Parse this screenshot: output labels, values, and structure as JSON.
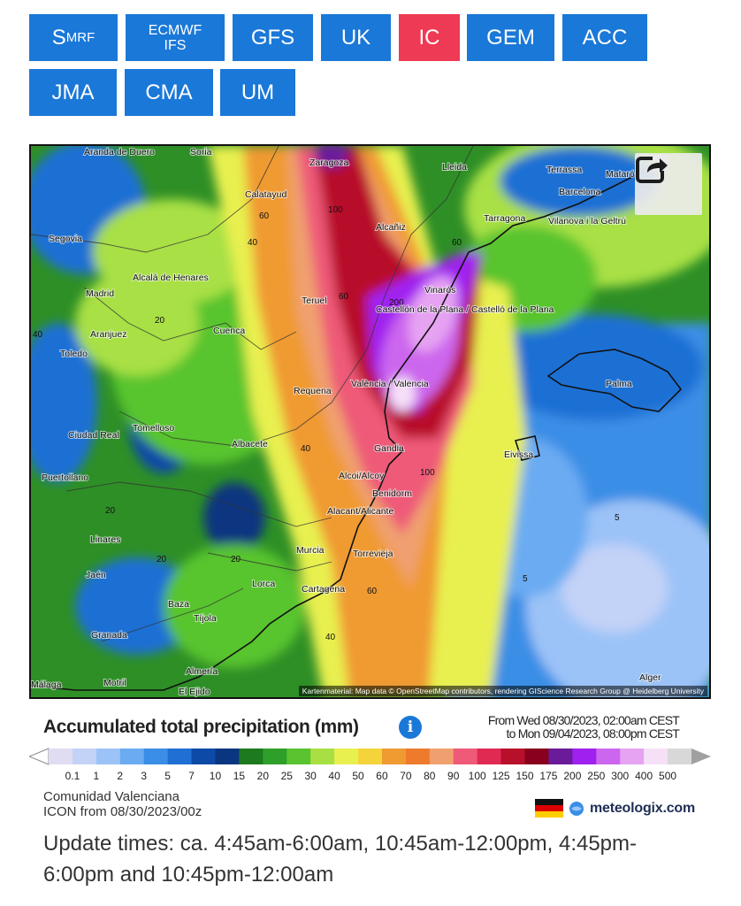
{
  "models": [
    {
      "label": "S",
      "sub": "MRF"
    },
    {
      "label": "ECMWF",
      "line2": "IFS"
    },
    {
      "label": "GFS"
    },
    {
      "label": "UK"
    },
    {
      "label": "IC",
      "active": true
    },
    {
      "label": "GEM"
    },
    {
      "label": "ACC"
    },
    {
      "label": "JMA"
    },
    {
      "label": "CMA"
    },
    {
      "label": "UM"
    }
  ],
  "map": {
    "cities": [
      "Aranda de Duero",
      "Soria",
      "Zaragoza",
      "Lleida",
      "Terrassa",
      "Mataró",
      "Barcelona",
      "Calatayud",
      "Tarragona",
      "Vilanova i la Geltrú",
      "Segovia",
      "Alcañiz",
      "Madrid",
      "Alcalá de Henares",
      "Vinaròs",
      "Teruel",
      "Castellón de la Plana / Castelló de la Plana",
      "Aranjuez",
      "Cuenca",
      "Toledo",
      "Palma",
      "Requena",
      "València / Valencia",
      "Ciudad Real",
      "Tomelloso",
      "Albacete",
      "Gandia",
      "Eivissa",
      "Puertollano",
      "Alcoi/Alcoy",
      "Benidorm",
      "Alacant/Alicante",
      "Linares",
      "Murcia",
      "Torrevieja",
      "Jaén",
      "Lorca",
      "Cartagena",
      "Baza",
      "Tíjola",
      "Granada",
      "Almería",
      "Motril",
      "El Ejido",
      "Málaga",
      "Alger"
    ],
    "contour_labels": [
      "60",
      "40",
      "100",
      "60",
      "20",
      "60",
      "200",
      "40",
      "20",
      "40",
      "100",
      "20",
      "20",
      "5",
      "5",
      "60",
      "40"
    ],
    "attribution": "Kartenmaterial: Map data © OpenStreetMap contributors, rendering GIScience Research Group @ Heidelberg University"
  },
  "legend": {
    "title": "Accumulated total precipitation (mm)",
    "period_from": "From Wed 08/30/2023, 02:00am CEST",
    "period_to": "to Mon 09/04/2023, 08:00pm CEST",
    "ticks": [
      "0.1",
      "1",
      "2",
      "3",
      "5",
      "7",
      "10",
      "15",
      "20",
      "25",
      "30",
      "40",
      "50",
      "60",
      "70",
      "80",
      "90",
      "100",
      "125",
      "150",
      "175",
      "200",
      "250",
      "300",
      "400",
      "500"
    ],
    "colors": [
      "#e0dcf2",
      "#c3d2f7",
      "#9cc3f7",
      "#6aabf2",
      "#3a8ee6",
      "#1f6fd4",
      "#0d4aa8",
      "#0a3580",
      "#1d7a1e",
      "#2ea02a",
      "#59c42f",
      "#a8e044",
      "#e8f050",
      "#f4d43a",
      "#f09a32",
      "#ee7a2c",
      "#f0a070",
      "#ee5a78",
      "#e02a52",
      "#b8102a",
      "#88001e",
      "#6a1b9a",
      "#a020f0",
      "#cc66ee",
      "#e6a3f2",
      "#f6e0f8",
      "#d8d8d8"
    ]
  },
  "footer": {
    "region": "Comunidad Valenciana",
    "model_run": "ICON from 08/30/2023/00z",
    "brand": "meteologix.com",
    "update": "Update times: ca. 4:45am-6:00am, 10:45am-12:00pm, 4:45pm-6:00pm and 10:45pm-12:00am"
  }
}
